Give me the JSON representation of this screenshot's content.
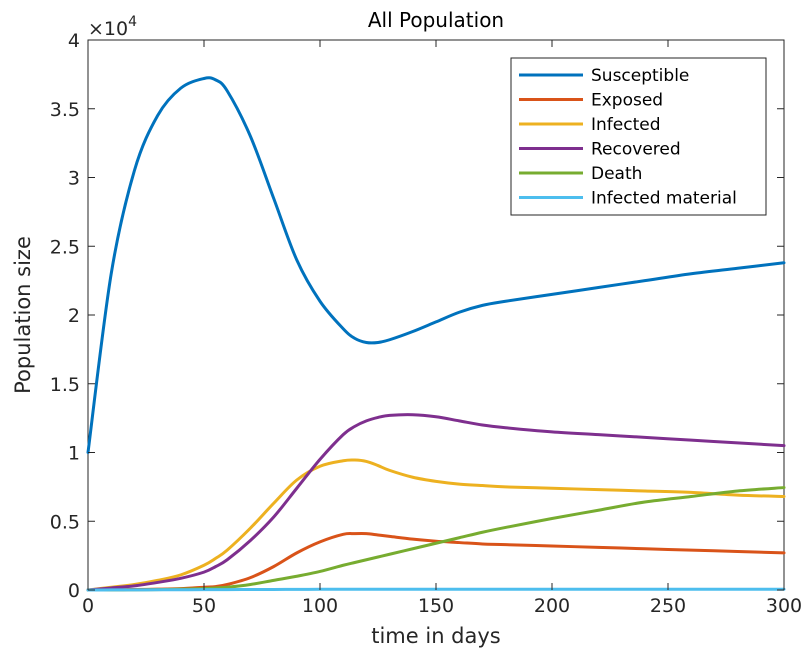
{
  "chart_data": {
    "type": "line",
    "title": "All Population",
    "xlabel": "time in days",
    "ylabel": "Population size",
    "xlim": [
      0,
      300
    ],
    "ylim": [
      0,
      40000
    ],
    "xticks": [
      0,
      50,
      100,
      150,
      200,
      250,
      300
    ],
    "xtick_labels": [
      "0",
      "50",
      "100",
      "150",
      "200",
      "250",
      "300"
    ],
    "yticks": [
      0,
      5000,
      10000,
      15000,
      20000,
      25000,
      30000,
      35000,
      40000
    ],
    "ytick_labels": [
      "0",
      "0.5",
      "1",
      "1.5",
      "2",
      "2.5",
      "3",
      "3.5",
      "4"
    ],
    "y_multiplier_base": "×10",
    "y_multiplier_exp": "4",
    "grid": false,
    "legend_position": "top-right",
    "x": [
      0,
      10,
      20,
      30,
      40,
      50,
      55,
      60,
      70,
      80,
      90,
      100,
      110,
      115,
      120,
      125,
      130,
      140,
      150,
      160,
      170,
      180,
      200,
      220,
      240,
      260,
      280,
      300
    ],
    "series": [
      {
        "name": "Susceptible",
        "color": "#0072BD",
        "values": [
          10000,
          23000,
          30500,
          34500,
          36500,
          37200,
          37100,
          36300,
          33000,
          28500,
          24000,
          21000,
          19000,
          18300,
          18000,
          18000,
          18200,
          18800,
          19500,
          20200,
          20700,
          21000,
          21500,
          22000,
          22500,
          23000,
          23400,
          23800
        ]
      },
      {
        "name": "Exposed",
        "color": "#D95319",
        "values": [
          0,
          20,
          40,
          60,
          100,
          200,
          250,
          400,
          900,
          1700,
          2700,
          3500,
          4050,
          4100,
          4100,
          4000,
          3900,
          3700,
          3550,
          3450,
          3350,
          3300,
          3200,
          3100,
          3000,
          2900,
          2800,
          2700
        ]
      },
      {
        "name": "Infected",
        "color": "#EDB120",
        "values": [
          0,
          200,
          400,
          700,
          1100,
          1800,
          2300,
          2900,
          4500,
          6300,
          8000,
          9000,
          9400,
          9450,
          9350,
          9050,
          8700,
          8200,
          7900,
          7700,
          7600,
          7500,
          7400,
          7300,
          7200,
          7100,
          6900,
          6800
        ]
      },
      {
        "name": "Recovered",
        "color": "#7E2F8E",
        "values": [
          0,
          150,
          300,
          550,
          850,
          1300,
          1700,
          2200,
          3600,
          5300,
          7400,
          9500,
          11300,
          11900,
          12300,
          12550,
          12700,
          12750,
          12600,
          12300,
          12000,
          11800,
          11500,
          11300,
          11100,
          10900,
          10700,
          10500
        ]
      },
      {
        "name": "Death",
        "color": "#77AC30",
        "values": [
          0,
          0,
          10,
          30,
          60,
          100,
          150,
          200,
          400,
          700,
          1000,
          1350,
          1800,
          2000,
          2200,
          2400,
          2600,
          3000,
          3400,
          3800,
          4200,
          4550,
          5200,
          5800,
          6400,
          6800,
          7200,
          7450
        ]
      },
      {
        "name": "Infected material",
        "color": "#4DBEEE",
        "values": [
          0,
          5,
          10,
          15,
          20,
          25,
          28,
          30,
          35,
          40,
          45,
          50,
          55,
          55,
          55,
          55,
          55,
          55,
          55,
          55,
          55,
          55,
          55,
          55,
          55,
          55,
          55,
          55
        ]
      }
    ]
  }
}
